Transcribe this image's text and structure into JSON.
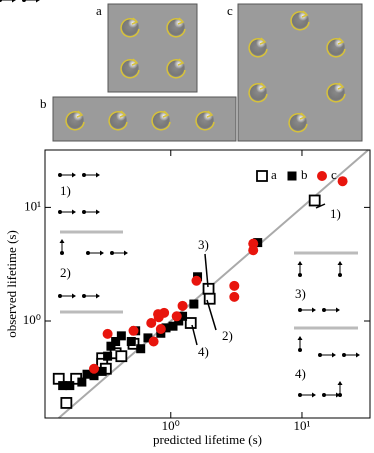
{
  "panels": {
    "a": "a",
    "b": "b",
    "c": "c"
  },
  "chart_data": {
    "type": "scatter",
    "x_label": "predicted lifetime (s)",
    "y_label": "observed lifetime (s)",
    "log_x": true,
    "log_y": true,
    "xlim": [
      0.11,
      33
    ],
    "ylim": [
      0.14,
      32
    ],
    "xticks": [
      {
        "value": 1,
        "label": "10⁰"
      },
      {
        "value": 10,
        "label": "10¹"
      }
    ],
    "yticks": [
      {
        "value": 1,
        "label": "10⁰"
      },
      {
        "value": 10,
        "label": "10¹"
      }
    ],
    "legend": "upper right",
    "series": [
      {
        "name": "a",
        "color": "#000000",
        "marker": "open-square",
        "x": [
          12.5,
          1.94,
          1.98,
          1.42,
          0.52,
          0.38,
          0.3,
          0.3,
          0.32,
          0.14,
          0.16,
          0.19,
          0.42
        ],
        "y": [
          11.5,
          1.92,
          1.57,
          0.96,
          0.63,
          0.52,
          0.47,
          0.42,
          0.38,
          0.31,
          0.19,
          0.31,
          0.49
        ]
      },
      {
        "name": "b",
        "color": "#000000",
        "marker": "square",
        "x": [
          4.6,
          1.6,
          1.5,
          1.23,
          1.15,
          1.04,
          0.92,
          0.67,
          0.54,
          0.5,
          0.59,
          0.35,
          0.33,
          0.3,
          0.26,
          0.23,
          0.21,
          0.17,
          0.15,
          0.38,
          0.42,
          0.84
        ],
        "y": [
          4.9,
          2.45,
          1.41,
          1.1,
          1.0,
          0.9,
          0.87,
          0.71,
          0.82,
          0.66,
          0.57,
          0.6,
          0.49,
          0.36,
          0.33,
          0.34,
          0.29,
          0.27,
          0.27,
          0.66,
          0.74,
          0.78
        ]
      },
      {
        "name": "c",
        "color": "#e8150d",
        "marker": "circle",
        "x": [
          20.4,
          4.25,
          4.25,
          3.05,
          3.05,
          1.57,
          1.23,
          0.89,
          0.81,
          0.71,
          0.74,
          0.8,
          1.11,
          0.52,
          0.26,
          0.33,
          0.84
        ],
        "y": [
          17,
          4.8,
          4.2,
          2.04,
          1.63,
          2.26,
          1.36,
          1.18,
          1.08,
          0.96,
          0.66,
          1.15,
          1.1,
          0.82,
          0.38,
          0.77,
          0.85
        ]
      }
    ],
    "annotations": [
      "1)",
      "2)",
      "3)",
      "4)",
      "1)",
      "2)",
      "3)",
      "4)"
    ]
  }
}
